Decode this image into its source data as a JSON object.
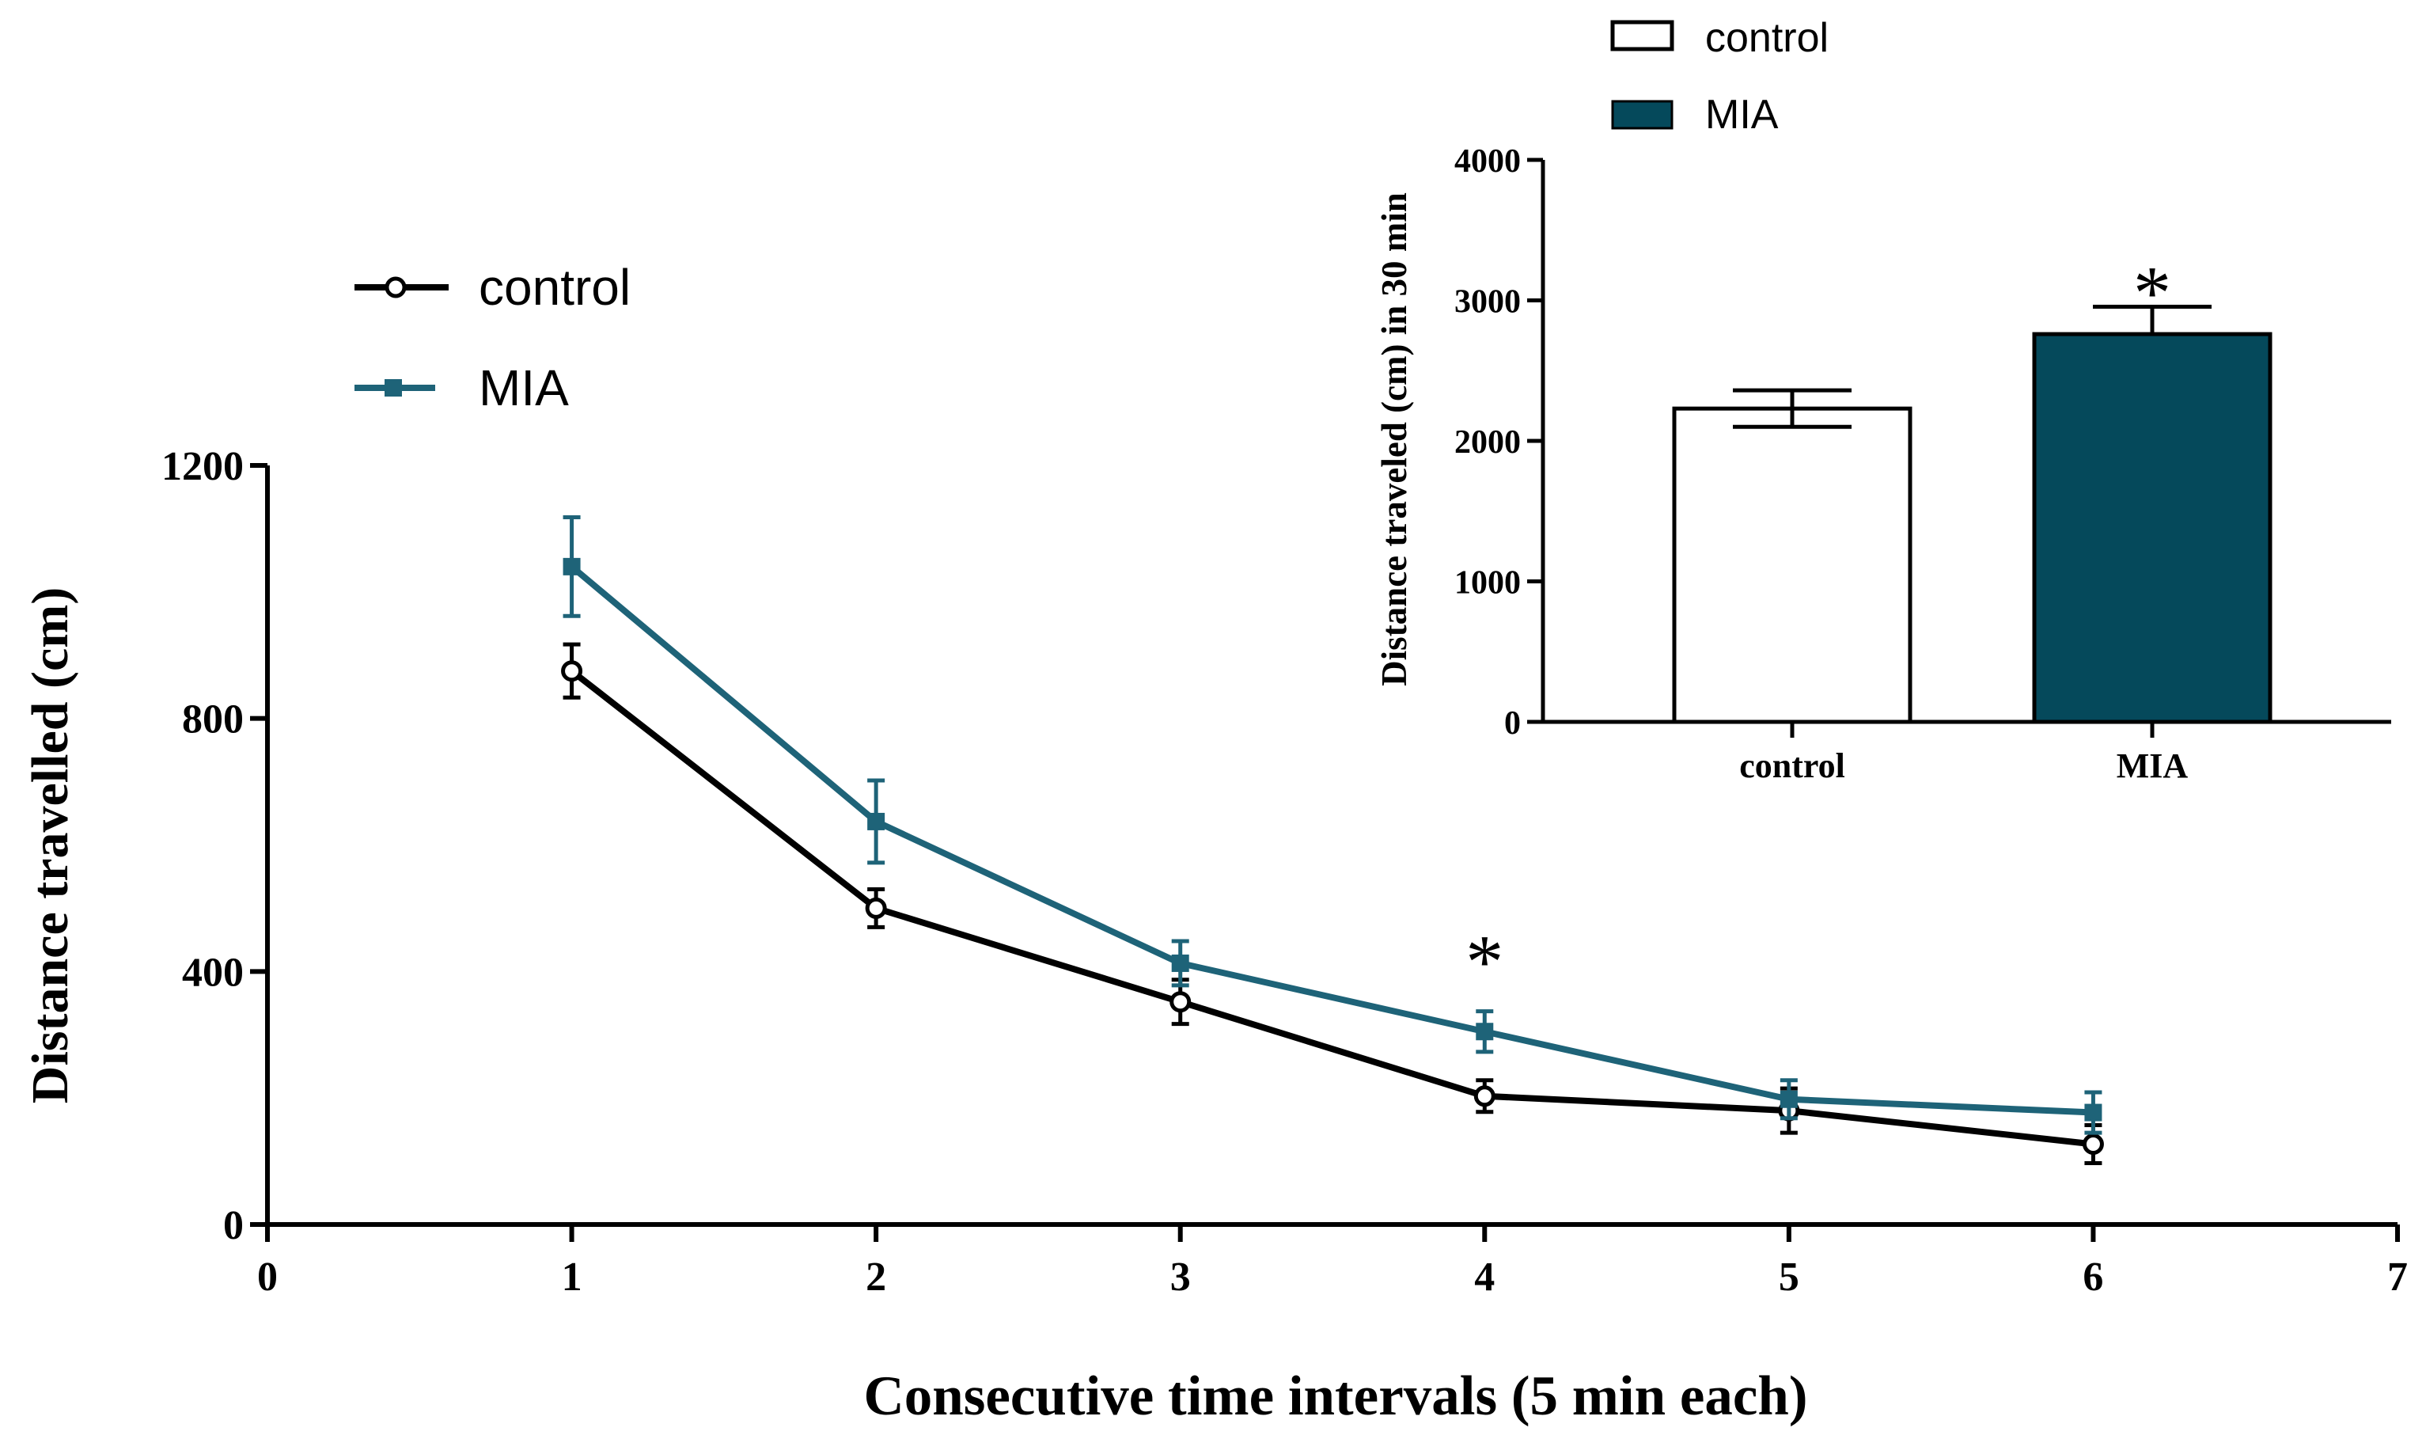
{
  "colors": {
    "control_line": "#000000",
    "mia": "#1e6378",
    "mia_bar": "#05495b",
    "axis": "#000000"
  },
  "chart_data": [
    {
      "type": "line",
      "title": "",
      "xlabel": "Consecutive time intervals (5 min each)",
      "ylabel": "Distance travelled (cm)",
      "xlim": [
        0,
        7
      ],
      "ylim": [
        0,
        1200
      ],
      "xticks": [
        "0",
        "1",
        "2",
        "3",
        "4",
        "5",
        "6",
        "7"
      ],
      "yticks": [
        "0",
        "400",
        "800",
        "1200"
      ],
      "x": [
        1,
        2,
        3,
        4,
        5,
        6
      ],
      "series": [
        {
          "name": "control",
          "marker": "open-circle",
          "values": [
            875,
            500,
            352,
            203,
            180,
            127
          ],
          "errors": [
            42,
            30,
            35,
            25,
            35,
            30
          ]
        },
        {
          "name": "MIA",
          "marker": "filled-square",
          "values": [
            1040,
            637,
            413,
            305,
            198,
            177
          ],
          "errors": [
            78,
            65,
            35,
            32,
            30,
            32
          ]
        }
      ],
      "annotations": [
        {
          "text": "*",
          "x": 4
        }
      ],
      "legend": {
        "position": "top-left",
        "entries": [
          "control",
          "MIA"
        ]
      }
    },
    {
      "type": "bar",
      "title": "",
      "xlabel": "",
      "ylabel": "Distance traveled (cm) in 30 min",
      "ylim": [
        0,
        4000
      ],
      "yticks": [
        "0",
        "1000",
        "2000",
        "3000",
        "4000"
      ],
      "categories": [
        "control",
        "MIA"
      ],
      "values": [
        2230,
        2760
      ],
      "errors": [
        130,
        195
      ],
      "annotations": [
        {
          "text": "*",
          "category": "MIA"
        }
      ],
      "legend": {
        "position": "top",
        "entries": [
          "control",
          "MIA"
        ]
      }
    }
  ]
}
